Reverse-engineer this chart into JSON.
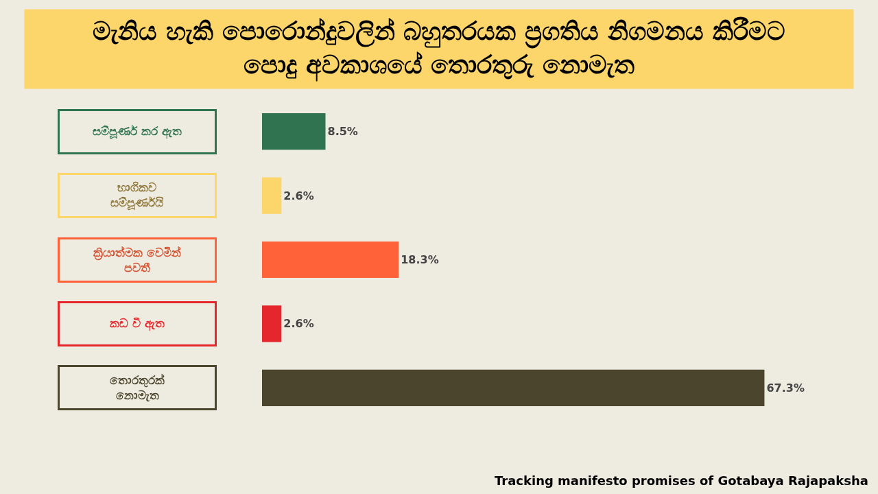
{
  "chart_data": {
    "type": "bar",
    "orientation": "horizontal",
    "title": "මැනිය හැකි පොරොන්දුවලින් බහුතරයක ප්‍රගතිය නිගමනය කිරීමට\nපොදු අවකාශයේ තොරතුරු නොමැත",
    "categories": [
      "සම්පූර්ණ කර ඇත",
      "භාගිකව\nසම්පූර්ණයි",
      "ක්‍රියාත්මක වෙමින්\nපවතී",
      "කඩ වී ඇත",
      "තොරතුරක්\nනොමැත"
    ],
    "values": [
      8.5,
      2.6,
      18.3,
      2.6,
      67.3
    ],
    "colors": [
      "#2f7350",
      "#fcd56b",
      "#ff6138",
      "#e5262c",
      "#4a452c"
    ],
    "value_labels": [
      "8.5%",
      "2.6%",
      "18.3%",
      "2.6%",
      "67.3%"
    ],
    "annotations": [
      "Tracking manifesto promises of Gotabaya Rajapaksha"
    ]
  }
}
